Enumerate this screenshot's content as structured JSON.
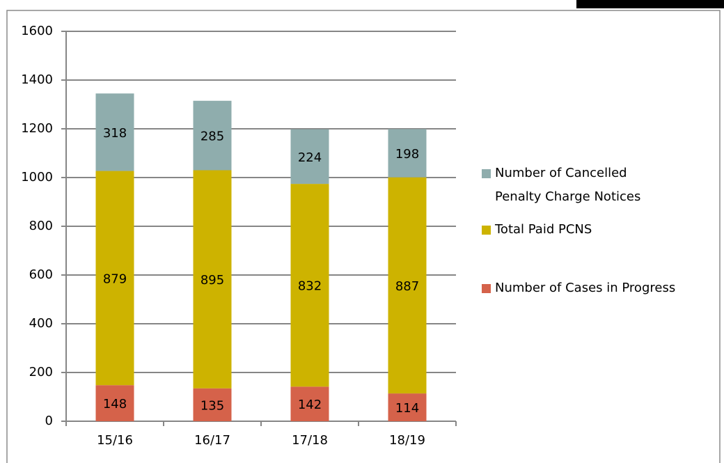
{
  "chart_data": {
    "type": "stacked_bar",
    "categories": [
      "15/16",
      "16/17",
      "17/18",
      "18/19"
    ],
    "series": [
      {
        "name": "Number of Cases in Progress",
        "color": "#d5624a",
        "values": [
          148,
          135,
          142,
          114
        ]
      },
      {
        "name": "Total Paid PCNS",
        "color": "#cdb300",
        "values": [
          879,
          895,
          832,
          887
        ]
      },
      {
        "name": "Number of Cancelled Penalty Charge Notices",
        "color": "#8fadad",
        "values": [
          318,
          285,
          224,
          198
        ]
      }
    ],
    "ylim": [
      0,
      1600
    ],
    "yticks": [
      0,
      200,
      400,
      600,
      800,
      1000,
      1200,
      1400,
      1600
    ],
    "grid": true,
    "legend": "right"
  }
}
